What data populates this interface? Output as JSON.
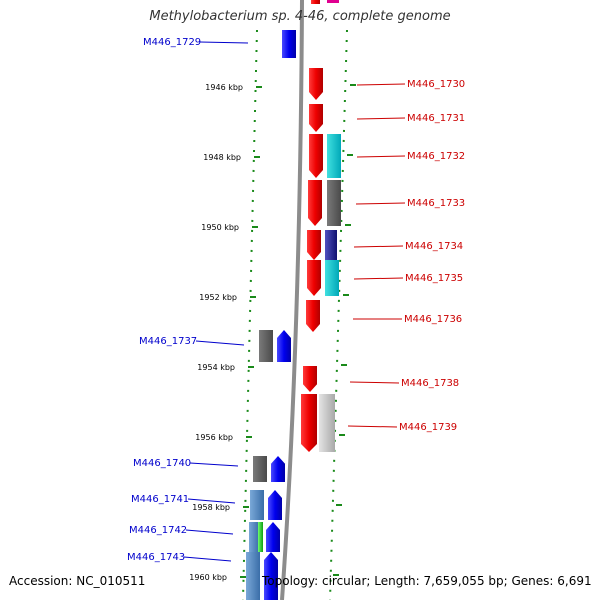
{
  "title": "Methylobacterium sp. 4-46, complete genome",
  "footer": {
    "accession": "Accession: NC_010511",
    "topology": "Topology: circular; Length: 7,659,055 bp; Genes: 6,691"
  },
  "colors": {
    "backbone": "#8c8c8c",
    "dots": "#1a8a1a",
    "forward_label": "#0000cc",
    "reverse_label": "#cc0000"
  },
  "ticks": [
    "1946 kbp",
    "1948 kbp",
    "1950 kbp",
    "1952 kbp",
    "1954 kbp",
    "1956 kbp",
    "1958 kbp",
    "1960 kbp"
  ],
  "genes": [
    {
      "label": "M446_1729",
      "strand": "+"
    },
    {
      "label": "M446_1730",
      "strand": "-"
    },
    {
      "label": "M446_1731",
      "strand": "-"
    },
    {
      "label": "M446_1732",
      "strand": "-"
    },
    {
      "label": "M446_1733",
      "strand": "-"
    },
    {
      "label": "M446_1734",
      "strand": "-"
    },
    {
      "label": "M446_1735",
      "strand": "-"
    },
    {
      "label": "M446_1736",
      "strand": "-"
    },
    {
      "label": "M446_1737",
      "strand": "+"
    },
    {
      "label": "M446_1738",
      "strand": "-"
    },
    {
      "label": "M446_1739",
      "strand": "-"
    },
    {
      "label": "M446_1740",
      "strand": "+"
    },
    {
      "label": "M446_1741",
      "strand": "+"
    },
    {
      "label": "M446_1742",
      "strand": "+"
    },
    {
      "label": "M446_1743",
      "strand": "+"
    }
  ]
}
